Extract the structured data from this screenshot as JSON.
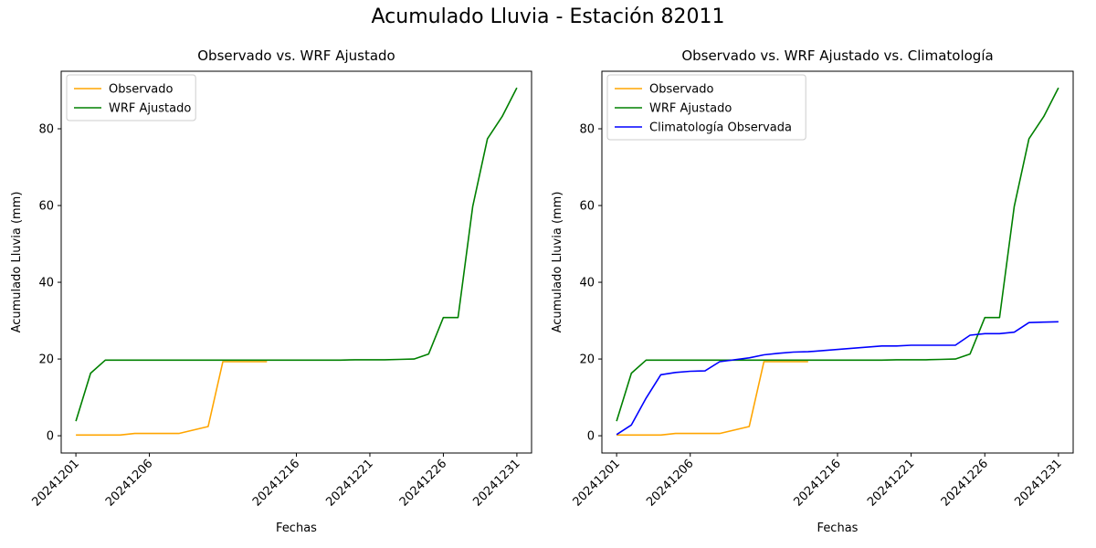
{
  "figure": {
    "suptitle": "Acumulado Lluvia - Estación 82011"
  },
  "colors": {
    "observado": "#ffa500",
    "wrf": "#008000",
    "climatologia": "#0000ff"
  },
  "chart_data": [
    {
      "type": "line",
      "title": "Observado vs. WRF Ajustado",
      "xlabel": "Fechas",
      "ylabel": "Acumulado Lluvia (mm)",
      "xlim": [
        "20241130",
        "20250101"
      ],
      "ylim": [
        -4.5,
        95
      ],
      "xticks": [
        "20241201",
        "20241206",
        "20241216",
        "20241221",
        "20241226",
        "20241231"
      ],
      "yticks": [
        0,
        20,
        40,
        60,
        80
      ],
      "legend": "upper-left",
      "series": [
        {
          "name": "Observado",
          "color_key": "observado",
          "points": [
            [
              "20241201",
              0.2
            ],
            [
              "20241202",
              0.2
            ],
            [
              "20241203",
              0.2
            ],
            [
              "20241204",
              0.2
            ],
            [
              "20241205",
              0.6
            ],
            [
              "20241206",
              0.6
            ],
            [
              "20241207",
              0.6
            ],
            [
              "20241208",
              0.6
            ],
            [
              "20241210",
              2.4
            ],
            [
              "20241211",
              19.3
            ],
            [
              "20241212",
              19.3
            ],
            [
              "20241213",
              19.3
            ],
            [
              "20241214",
              19.3
            ]
          ]
        },
        {
          "name": "WRF Ajustado",
          "color_key": "wrf",
          "points": [
            [
              "20241201",
              3.8
            ],
            [
              "20241202",
              16.3
            ],
            [
              "20241203",
              19.7
            ],
            [
              "20241204",
              19.7
            ],
            [
              "20241205",
              19.7
            ],
            [
              "20241206",
              19.7
            ],
            [
              "20241207",
              19.7
            ],
            [
              "20241208",
              19.7
            ],
            [
              "20241210",
              19.7
            ],
            [
              "20241211",
              19.7
            ],
            [
              "20241212",
              19.7
            ],
            [
              "20241213",
              19.7
            ],
            [
              "20241214",
              19.7
            ],
            [
              "20241219",
              19.7
            ],
            [
              "20241220",
              19.8
            ],
            [
              "20241221",
              19.8
            ],
            [
              "20241222",
              19.8
            ],
            [
              "20241223",
              19.9
            ],
            [
              "20241224",
              20.0
            ],
            [
              "20241225",
              21.3
            ],
            [
              "20241226",
              30.8
            ],
            [
              "20241227",
              30.8
            ],
            [
              "20241228",
              59.8
            ],
            [
              "20241229",
              77.4
            ],
            [
              "20241230",
              83.2
            ],
            [
              "20241231",
              90.7
            ]
          ]
        }
      ]
    },
    {
      "type": "line",
      "title": "Observado vs. WRF Ajustado vs. Climatología",
      "xlabel": "Fechas",
      "ylabel": "Acumulado Lluvia (mm)",
      "xlim": [
        "20241130",
        "20250101"
      ],
      "ylim": [
        -4.5,
        95
      ],
      "xticks": [
        "20241201",
        "20241206",
        "20241216",
        "20241221",
        "20241226",
        "20241231"
      ],
      "yticks": [
        0,
        20,
        40,
        60,
        80
      ],
      "legend": "upper-left",
      "series": [
        {
          "name": "Observado",
          "color_key": "observado",
          "points": [
            [
              "20241201",
              0.2
            ],
            [
              "20241202",
              0.2
            ],
            [
              "20241203",
              0.2
            ],
            [
              "20241204",
              0.2
            ],
            [
              "20241205",
              0.6
            ],
            [
              "20241206",
              0.6
            ],
            [
              "20241207",
              0.6
            ],
            [
              "20241208",
              0.6
            ],
            [
              "20241210",
              2.4
            ],
            [
              "20241211",
              19.3
            ],
            [
              "20241212",
              19.3
            ],
            [
              "20241213",
              19.3
            ],
            [
              "20241214",
              19.3
            ]
          ]
        },
        {
          "name": "WRF Ajustado",
          "color_key": "wrf",
          "points": [
            [
              "20241201",
              3.8
            ],
            [
              "20241202",
              16.3
            ],
            [
              "20241203",
              19.7
            ],
            [
              "20241204",
              19.7
            ],
            [
              "20241205",
              19.7
            ],
            [
              "20241206",
              19.7
            ],
            [
              "20241207",
              19.7
            ],
            [
              "20241208",
              19.7
            ],
            [
              "20241210",
              19.7
            ],
            [
              "20241211",
              19.7
            ],
            [
              "20241212",
              19.7
            ],
            [
              "20241213",
              19.7
            ],
            [
              "20241214",
              19.7
            ],
            [
              "20241219",
              19.7
            ],
            [
              "20241220",
              19.8
            ],
            [
              "20241221",
              19.8
            ],
            [
              "20241222",
              19.8
            ],
            [
              "20241223",
              19.9
            ],
            [
              "20241224",
              20.0
            ],
            [
              "20241225",
              21.3
            ],
            [
              "20241226",
              30.8
            ],
            [
              "20241227",
              30.8
            ],
            [
              "20241228",
              59.8
            ],
            [
              "20241229",
              77.4
            ],
            [
              "20241230",
              83.2
            ],
            [
              "20241231",
              90.7
            ]
          ]
        },
        {
          "name": "Climatología Observada",
          "color_key": "climatologia",
          "points": [
            [
              "20241201",
              0.3
            ],
            [
              "20241202",
              2.8
            ],
            [
              "20241203",
              9.8
            ],
            [
              "20241204",
              15.9
            ],
            [
              "20241205",
              16.5
            ],
            [
              "20241206",
              16.8
            ],
            [
              "20241207",
              16.9
            ],
            [
              "20241208",
              19.3
            ],
            [
              "20241210",
              20.3
            ],
            [
              "20241211",
              21.1
            ],
            [
              "20241212",
              21.5
            ],
            [
              "20241213",
              21.8
            ],
            [
              "20241214",
              21.9
            ],
            [
              "20241219",
              23.4
            ],
            [
              "20241220",
              23.4
            ],
            [
              "20241221",
              23.6
            ],
            [
              "20241222",
              23.6
            ],
            [
              "20241223",
              23.6
            ],
            [
              "20241224",
              23.6
            ],
            [
              "20241225",
              26.2
            ],
            [
              "20241226",
              26.6
            ],
            [
              "20241227",
              26.6
            ],
            [
              "20241228",
              27.0
            ],
            [
              "20241229",
              29.5
            ],
            [
              "20241230",
              29.6
            ],
            [
              "20241231",
              29.7
            ]
          ]
        }
      ]
    }
  ]
}
